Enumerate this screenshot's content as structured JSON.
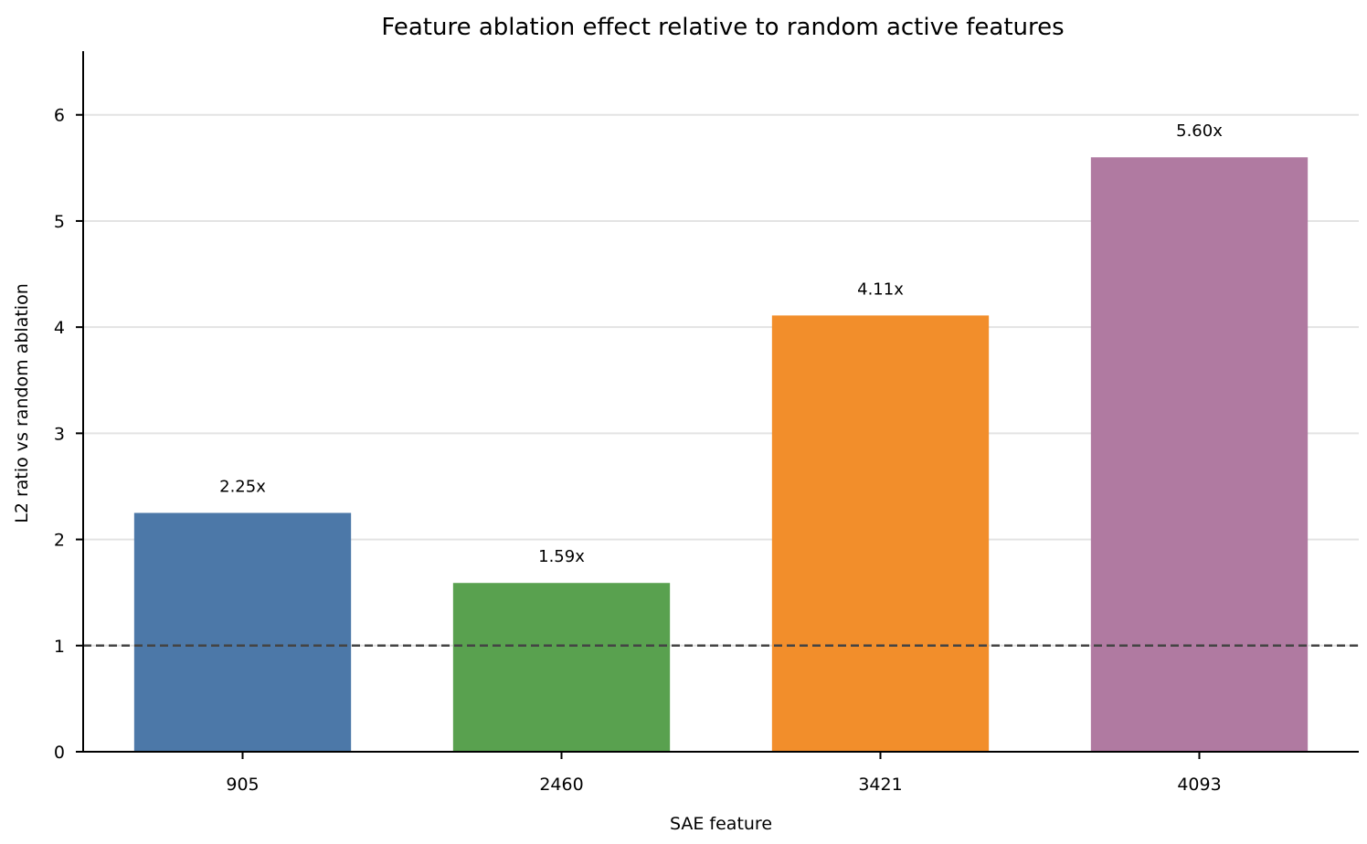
{
  "chart_data": {
    "type": "bar",
    "title": "Feature ablation effect relative to random active features",
    "xlabel": "SAE feature",
    "ylabel": "L2 ratio vs random ablation",
    "categories": [
      "905",
      "2460",
      "3421",
      "4093"
    ],
    "values": [
      2.25,
      1.59,
      4.11,
      5.6
    ],
    "data_labels": [
      "2.25x",
      "1.59x",
      "4.11x",
      "5.60x"
    ],
    "colors": [
      "#4c78a8",
      "#59a14f",
      "#f28e2b",
      "#b07aa1"
    ],
    "ylim": [
      0,
      6.6
    ],
    "yticks": [
      0,
      1,
      2,
      3,
      4,
      5,
      6
    ],
    "reference_line": {
      "y": 1,
      "style": "dashed",
      "color": "#444444"
    },
    "grid": "horizontal",
    "legend": "none"
  }
}
